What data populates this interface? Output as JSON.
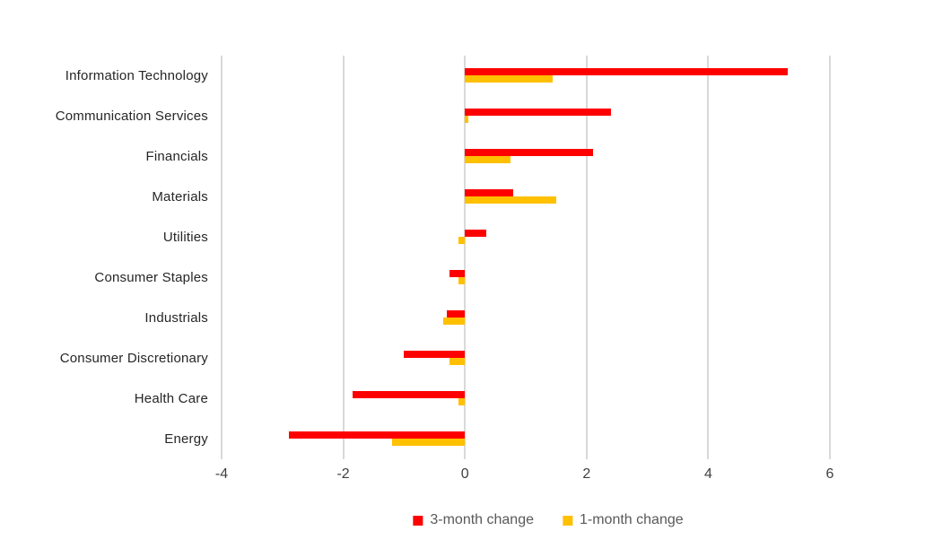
{
  "chart_data": {
    "type": "bar",
    "orientation": "horizontal",
    "title": "",
    "xlabel": "",
    "ylabel": "",
    "categories": [
      "Information Technology",
      "Communication Services",
      "Financials",
      "Materials",
      "Utilities",
      "Consumer Staples",
      "Industrials",
      "Consumer Discretionary",
      "Health Care",
      "Energy"
    ],
    "series": [
      {
        "name": "3-month change",
        "color": "#ff0000",
        "values": [
          5.3,
          2.4,
          2.1,
          0.8,
          0.35,
          -0.25,
          -0.3,
          -1.0,
          -1.85,
          -2.9
        ]
      },
      {
        "name": "1-month change",
        "color": "#ffc000",
        "values": [
          1.45,
          0.05,
          0.75,
          1.5,
          -0.1,
          -0.1,
          -0.35,
          -0.25,
          -0.1,
          -1.2
        ]
      }
    ],
    "x_axis": {
      "min": -4,
      "max": 6,
      "ticks": [
        -4,
        -2,
        0,
        2,
        4,
        6
      ],
      "tick_labels": [
        "-4",
        "-2",
        "0",
        "2",
        "4",
        "6"
      ]
    },
    "grid": "vertical-only",
    "gridline_color": "#d9d9d9",
    "legend_position": "bottom-center",
    "legend": [
      {
        "label": "3-month change",
        "color": "#ff0000"
      },
      {
        "label": "1-month change",
        "color": "#ffc000"
      }
    ]
  },
  "colors": {
    "background": "#ffffff",
    "category_text": "#262626",
    "axis_text": "#404040",
    "legend_text": "#595959"
  }
}
